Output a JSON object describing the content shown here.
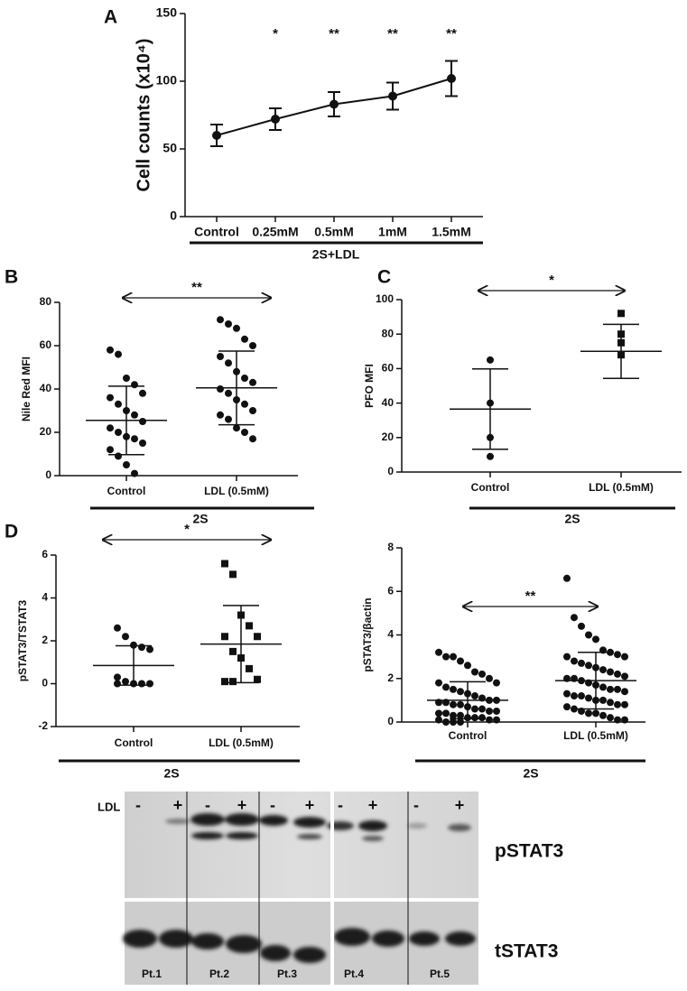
{
  "chart_data": [
    {
      "type": "line",
      "panel": "A",
      "ylabel": "Cell counts (x10⁴)",
      "group": "2S+LDL",
      "categories": [
        "Control",
        "0.25mM",
        "0.5mM",
        "1mM",
        "1.5mM"
      ],
      "values": [
        60,
        72,
        83,
        89,
        102
      ],
      "errors": [
        8,
        8,
        9,
        10,
        13
      ],
      "significance": [
        null,
        "*",
        "**",
        "**",
        "**"
      ],
      "ylim": [
        0,
        150
      ],
      "yticks": [
        0,
        50,
        100,
        150
      ],
      "color": "#111111"
    },
    {
      "type": "dotplot",
      "panel": "B",
      "ylabel": "Nile Red MFI",
      "group": "2S",
      "significance": "**",
      "categories": [
        "Control",
        "LDL (0.5mM)"
      ],
      "groups": [
        {
          "marker": "circle",
          "values": [
            58,
            56,
            45,
            42,
            38,
            36,
            33,
            30,
            28,
            25,
            22,
            20,
            18,
            17,
            15,
            12,
            9,
            5,
            1
          ],
          "mean": 25.5,
          "sd": 15.8
        },
        {
          "marker": "circle",
          "values": [
            72,
            70,
            68,
            63,
            60,
            55,
            52,
            48,
            45,
            43,
            40,
            38,
            35,
            33,
            30,
            28,
            26,
            22,
            20,
            17
          ],
          "mean": 40.5,
          "sd": 17
        }
      ],
      "ylim": [
        0,
        80
      ],
      "yticks": [
        0,
        20,
        40,
        60,
        80
      ],
      "color": "#111111"
    },
    {
      "type": "dotplot",
      "panel": "C",
      "ylabel": "PFO MFI",
      "group": "2S",
      "significance": "*",
      "categories": [
        "Control",
        "LDL (0.5mM)"
      ],
      "groups": [
        {
          "marker": "circle",
          "values": [
            65,
            40,
            20,
            9
          ],
          "mean": 36.5,
          "sd": 23.3
        },
        {
          "marker": "square",
          "values": [
            92,
            80,
            75,
            68
          ],
          "mean": 70,
          "sd": 15.7
        }
      ],
      "ylim": [
        0,
        100
      ],
      "yticks": [
        0,
        20,
        40,
        60,
        80,
        100
      ],
      "color": "#111111"
    },
    {
      "type": "dotplot",
      "panel": "D",
      "ylabel": "pSTAT3/TSTAT3",
      "group": "2S",
      "significance": "*",
      "categories": [
        "Control",
        "LDL (0.5mM)"
      ],
      "groups": [
        {
          "marker": "circle",
          "values": [
            2.6,
            2.2,
            1.8,
            1.7,
            1.6,
            0.3,
            0.1,
            0,
            0,
            0,
            0
          ],
          "mean": 0.85,
          "sd": 0.92
        },
        {
          "marker": "square",
          "values": [
            5.6,
            5.1,
            3.2,
            2.7,
            2.2,
            2.2,
            1.5,
            1.2,
            0.7,
            0.2,
            0.1,
            0.1
          ],
          "mean": 1.85,
          "sd": 1.8
        }
      ],
      "ylim": [
        -2,
        6
      ],
      "yticks": [
        -2,
        0,
        2,
        4,
        6
      ],
      "color": "#111111"
    },
    {
      "type": "dotplot",
      "ylabel": "pSTAT3/βactin",
      "group": "2S",
      "significance": "**",
      "categories": [
        "Control",
        "LDL (0.5mM)"
      ],
      "groups": [
        {
          "marker": "circle",
          "values": [
            3.2,
            3.0,
            3.0,
            2.8,
            2.6,
            2.3,
            2.2,
            2.0,
            1.8,
            1.8,
            1.6,
            1.5,
            1.4,
            1.3,
            1.2,
            1.1,
            1.0,
            1.0,
            0.9,
            0.9,
            0.8,
            0.8,
            0.7,
            0.6,
            0.6,
            0.5,
            0.5,
            0.4,
            0.4,
            0.3,
            0.3,
            0.2,
            0.2,
            0.2,
            0.1,
            0.1,
            0.1,
            0,
            0,
            0
          ],
          "mean": 1.0,
          "sd": 0.85
        },
        {
          "marker": "circle",
          "values": [
            6.6,
            4.8,
            4.4,
            4.0,
            3.8,
            3.3,
            3.2,
            3.1,
            3.0,
            3.0,
            2.8,
            2.7,
            2.6,
            2.5,
            2.4,
            2.3,
            2.2,
            2.1,
            2.0,
            2.0,
            1.9,
            1.8,
            1.7,
            1.6,
            1.5,
            1.5,
            1.4,
            1.3,
            1.2,
            1.2,
            1.1,
            1.0,
            1.0,
            0.9,
            0.8,
            0.8,
            0.7,
            0.6,
            0.5,
            0.4,
            0.4,
            0.3,
            0.2,
            0.1,
            0.1
          ],
          "mean": 1.9,
          "sd": 1.3
        }
      ],
      "ylim": [
        0,
        8
      ],
      "yticks": [
        0,
        2,
        4,
        6,
        8
      ],
      "color": "#111111"
    }
  ],
  "blot": {
    "treatment": "LDL",
    "lanes": [
      "-",
      "+",
      "-",
      "+",
      "-",
      "+",
      "-",
      "+",
      "-",
      "+"
    ],
    "bands": [
      "pSTAT3",
      "tSTAT3"
    ],
    "patients": [
      "Pt.1",
      "Pt.2",
      "Pt.3",
      "Pt.4",
      "Pt.5"
    ]
  }
}
